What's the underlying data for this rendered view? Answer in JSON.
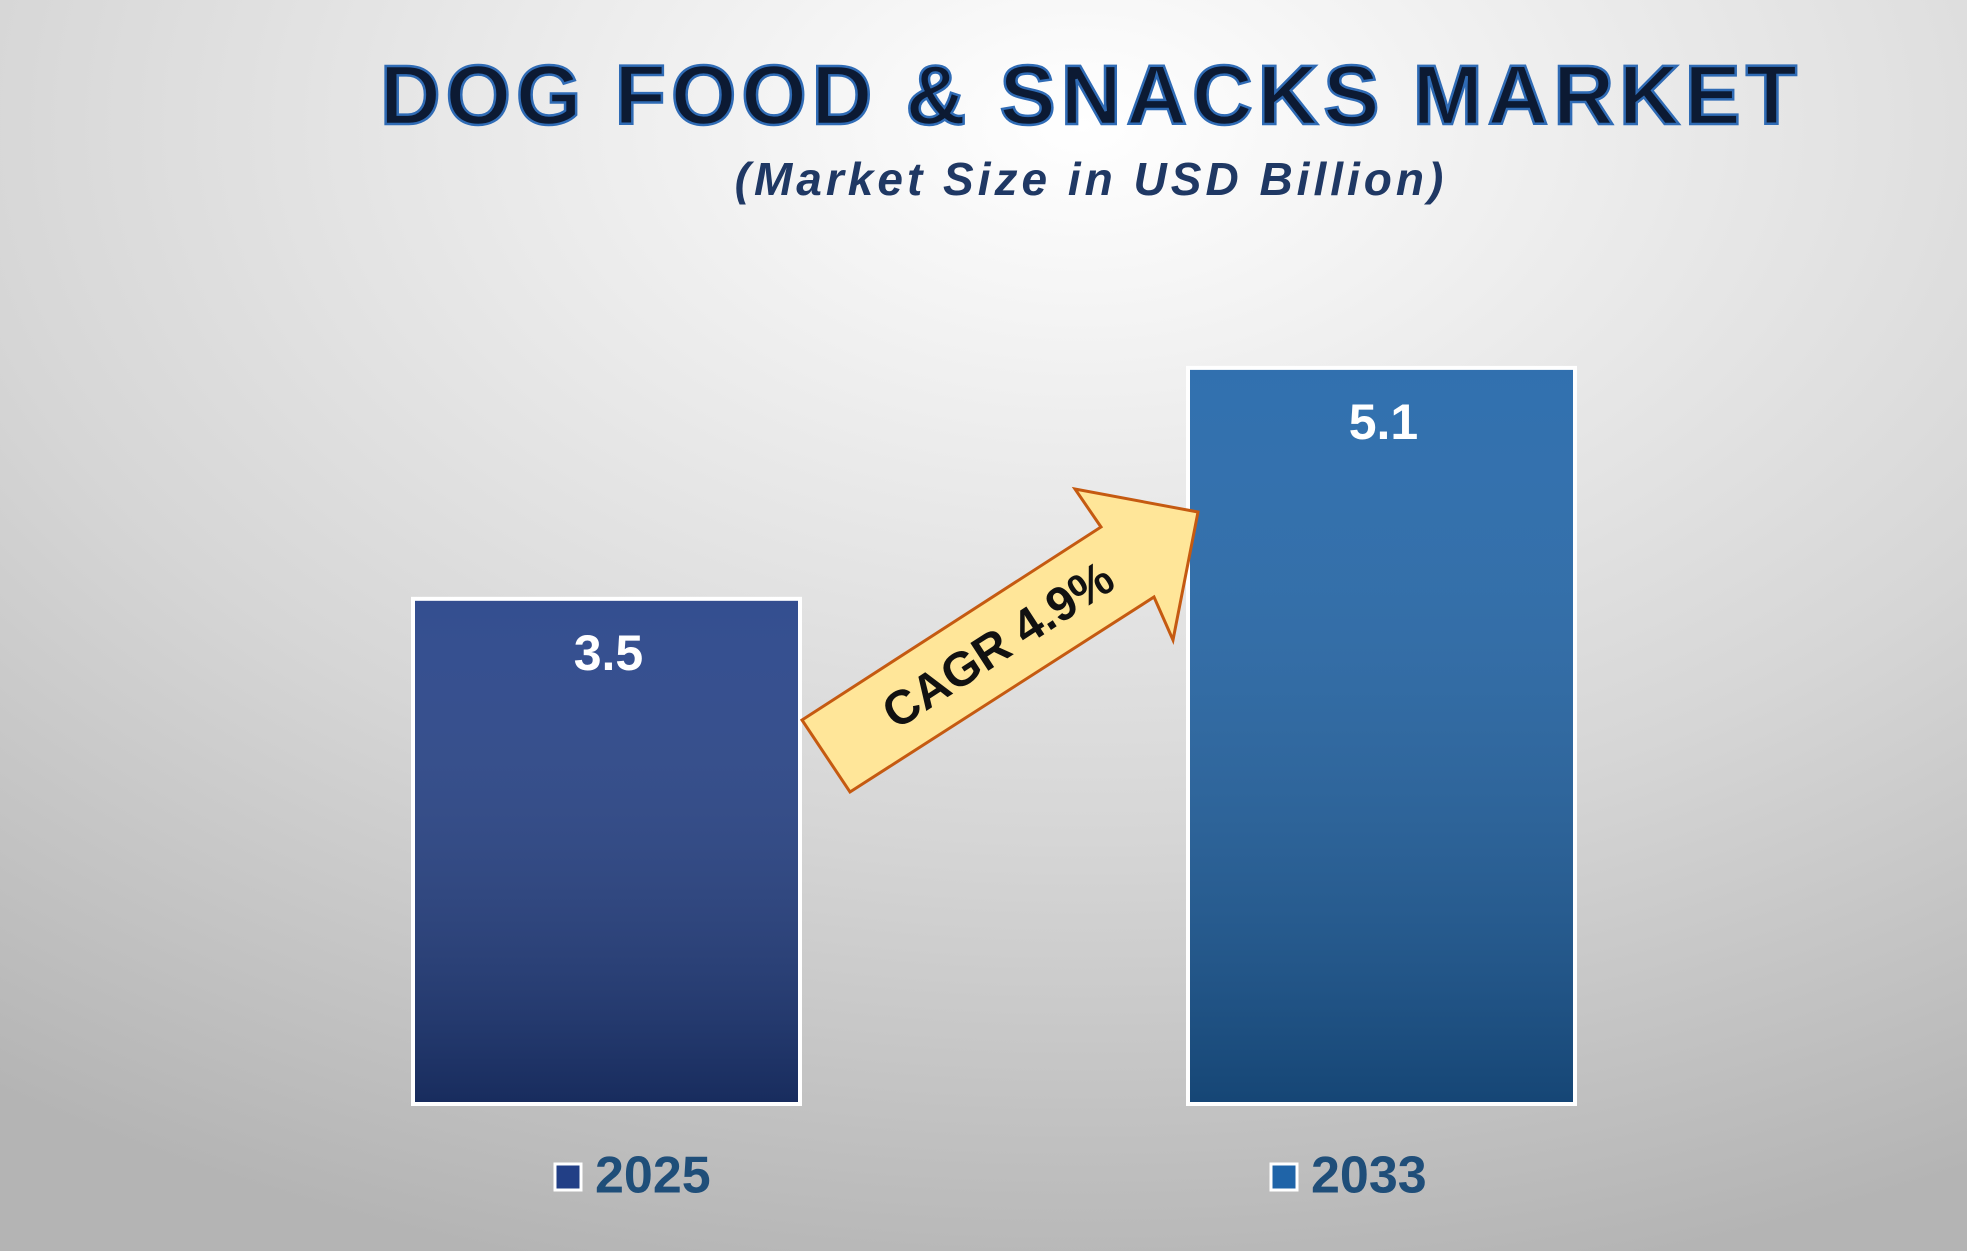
{
  "chart_data": {
    "type": "bar",
    "title": "DOG FOOD & SNACKS MARKET",
    "subtitle": "(Market Size in USD Billion)",
    "annotation": "CAGR 4.9%",
    "series": [
      {
        "name": "2025",
        "color": "#223f86",
        "values": [
          3.5
        ]
      },
      {
        "name": "2033",
        "color": "#1f64a8",
        "values": [
          5.1
        ]
      }
    ],
    "ylim": [
      0,
      6
    ],
    "legend": "bottom"
  }
}
